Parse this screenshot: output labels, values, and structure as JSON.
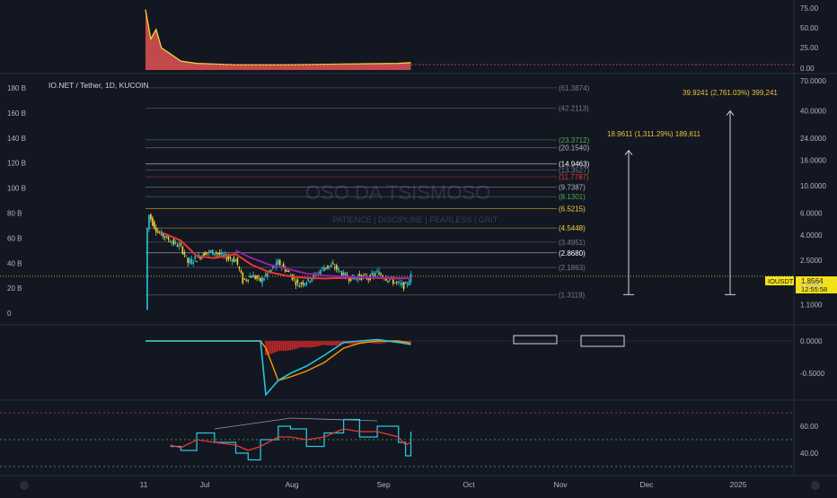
{
  "header": {
    "symbol_line": "IO.NET / Tether, 1D, KUCOIN",
    "watermark": "OSO DA TSISMOSO",
    "tagline": "PATIENCE  |  DISCIPLINE  |  FEARLESS  |  GRIT"
  },
  "time_axis": {
    "labels": [
      "11",
      "Jul",
      "Aug",
      "Sep",
      "Oct",
      "Nov",
      "Dec",
      "2025"
    ]
  },
  "price_badge": {
    "ticker": "IOUSDT",
    "price": "1.8564",
    "countdown": "12:55:58"
  },
  "projections": [
    {
      "text": "39.9241 (2,761.03%) 399,241",
      "color": "#e8c33a"
    },
    {
      "text": "18.9611 (1,311.29%) 189,611",
      "color": "#e8c33a"
    }
  ],
  "colors": {
    "background": "#131722",
    "up_candle": "#26c6da",
    "down_candle": "#f5d33a",
    "ema_red": "#e53935",
    "ema_purple": "#8e24aa",
    "macd_line": "#26c6da",
    "signal_line": "#ff9800",
    "rsi_line": "#26c6da",
    "rsi_ma": "#e53935"
  },
  "chart_data": [
    {
      "type": "area",
      "panel": "top-indicator",
      "y_ticks": [
        "75.00",
        "50.00",
        "25.00",
        "0.00"
      ],
      "x": [
        "Jun 11",
        "Jun 14",
        "Jun 17",
        "Jun 20",
        "Jun 25",
        "Jul 1",
        "Jul 10",
        "Jul 20",
        "Aug 1",
        "Sep 1",
        "Oct 1",
        "Nov 1",
        "Nov 8"
      ],
      "values": [
        82,
        42,
        55,
        30,
        22,
        12,
        9,
        8,
        7,
        7,
        8,
        9,
        10
      ],
      "ylim": [
        0,
        90
      ]
    },
    {
      "type": "line",
      "panel": "price",
      "candlesticks": true,
      "right_axis_ticks": [
        "70.0000",
        "40.0000",
        "24.0000",
        "16.0000",
        "10.0000",
        "6.0000",
        "4.0000",
        "2.5000",
        "1.6000",
        "1.1000"
      ],
      "left_axis_ticks": [
        "180 B",
        "160 B",
        "140 B",
        "120 B",
        "100 B",
        "80 B",
        "60 B",
        "40 B",
        "20 B",
        "0"
      ],
      "fib_levels": [
        {
          "label": "(61.3874)"
        },
        {
          "label": "(42.2113)"
        },
        {
          "label": "(23.3712)"
        },
        {
          "label": "(20.1540)"
        },
        {
          "label": "(14.9463)"
        },
        {
          "label": "(13.3527)"
        },
        {
          "label": "(11.7787)"
        },
        {
          "label": "(9.7387)"
        },
        {
          "label": "(8.1301)"
        },
        {
          "label": "(6.5215)"
        },
        {
          "label": "(4.5448)"
        },
        {
          "label": "(3.4951)"
        },
        {
          "label": "(2.8680)"
        },
        {
          "label": "(2.1863)"
        },
        {
          "label": "(1.3119)"
        }
      ],
      "series": [
        {
          "name": "",
          "color": "#e53935",
          "x": [
            "Jun 20",
            "Jul 1",
            "Jul 10",
            "Jul 20",
            "Aug 1",
            "Aug 10",
            "Aug 20",
            "Sep 1",
            "Sep 10",
            "Sep 20",
            "Oct 1",
            "Oct 10",
            "Oct 20",
            "Nov 1",
            "Nov 8"
          ],
          "values": [
            4.2,
            3.6,
            2.7,
            2.6,
            2.8,
            2.3,
            2.0,
            1.85,
            1.8,
            1.78,
            1.8,
            1.82,
            1.8,
            1.78,
            1.8
          ]
        },
        {
          "name": "",
          "color": "#8e24aa",
          "x": [
            "Aug 1",
            "Aug 10",
            "Aug 20",
            "Sep 1",
            "Sep 10",
            "Sep 20",
            "Oct 1",
            "Oct 10",
            "Oct 20",
            "Nov 1",
            "Nov 8"
          ],
          "values": [
            3.0,
            2.6,
            2.3,
            2.1,
            1.95,
            1.88,
            1.85,
            1.83,
            1.82,
            1.8,
            1.8
          ]
        }
      ],
      "close": [
        [
          "Jun 11",
          1.0
        ],
        [
          "Jun 12",
          4.5
        ],
        [
          "Jun 13",
          5.8
        ],
        [
          "Jun 15",
          5.0
        ],
        [
          "Jun 18",
          4.2
        ],
        [
          "Jun 22",
          3.9
        ],
        [
          "Jun 26",
          3.5
        ],
        [
          "Jul 1",
          3.2
        ],
        [
          "Jul 5",
          2.4
        ],
        [
          "Jul 10",
          2.6
        ],
        [
          "Jul 15",
          2.9
        ],
        [
          "Jul 20",
          2.9
        ],
        [
          "Jul 25",
          2.7
        ],
        [
          "Aug 1",
          2.5
        ],
        [
          "Aug 5",
          1.7
        ],
        [
          "Aug 10",
          1.9
        ],
        [
          "Aug 15",
          1.7
        ],
        [
          "Aug 20",
          2.0
        ],
        [
          "Aug 25",
          2.4
        ],
        [
          "Sep 1",
          1.9
        ],
        [
          "Sep 5",
          1.6
        ],
        [
          "Sep 10",
          1.7
        ],
        [
          "Sep 15",
          1.9
        ],
        [
          "Sep 20",
          2.2
        ],
        [
          "Sep 25",
          2.25
        ],
        [
          "Oct 1",
          1.9
        ],
        [
          "Oct 5",
          1.8
        ],
        [
          "Oct 10",
          1.85
        ],
        [
          "Oct 15",
          1.8
        ],
        [
          "Oct 20",
          2.0
        ],
        [
          "Oct 25",
          1.8
        ],
        [
          "Nov 1",
          1.6
        ],
        [
          "Nov 5",
          1.55
        ],
        [
          "Nov 8",
          1.86
        ]
      ]
    },
    {
      "type": "bar",
      "panel": "macd",
      "y_ticks": [
        "0.0000",
        "-0.5000"
      ],
      "x": [
        "Jun 11",
        "Aug 15",
        "Aug 18",
        "Aug 25",
        "Sep 1",
        "Sep 10",
        "Sep 20",
        "Oct 1",
        "Oct 10",
        "Oct 20",
        "Nov 1",
        "Nov 8"
      ],
      "macd": [
        0,
        0,
        -0.75,
        -0.55,
        -0.45,
        -0.35,
        -0.2,
        -0.02,
        0.0,
        0.02,
        -0.02,
        -0.05
      ],
      "signal": [
        0,
        0,
        -0.1,
        -0.55,
        -0.5,
        -0.42,
        -0.3,
        -0.1,
        -0.03,
        0.0,
        0.0,
        -0.03
      ],
      "histogram": [
        0,
        0,
        -0.15,
        -0.12,
        -0.08,
        -0.05,
        -0.05,
        -0.04,
        -0.03,
        -0.03,
        -0.02,
        -0.02
      ]
    },
    {
      "type": "line",
      "panel": "rsi",
      "y_ticks": [
        "60.00",
        "40.00"
      ],
      "x": [
        "Jun 25",
        "Jul 1",
        "Jul 10",
        "Jul 20",
        "Aug 1",
        "Aug 8",
        "Aug 15",
        "Aug 25",
        "Sep 1",
        "Sep 10",
        "Sep 20",
        "Oct 1",
        "Oct 10",
        "Oct 20",
        "Nov 1",
        "Nov 5",
        "Nov 8"
      ],
      "series": [
        {
          "name": "",
          "values": [
            45,
            42,
            55,
            48,
            40,
            35,
            50,
            60,
            58,
            45,
            55,
            65,
            52,
            60,
            48,
            38,
            56
          ]
        },
        {
          "name": "",
          "values": [
            46,
            44,
            50,
            48,
            46,
            42,
            45,
            52,
            52,
            50,
            52,
            58,
            56,
            56,
            52,
            46,
            48
          ]
        }
      ],
      "ylim": [
        20,
        80
      ]
    }
  ]
}
